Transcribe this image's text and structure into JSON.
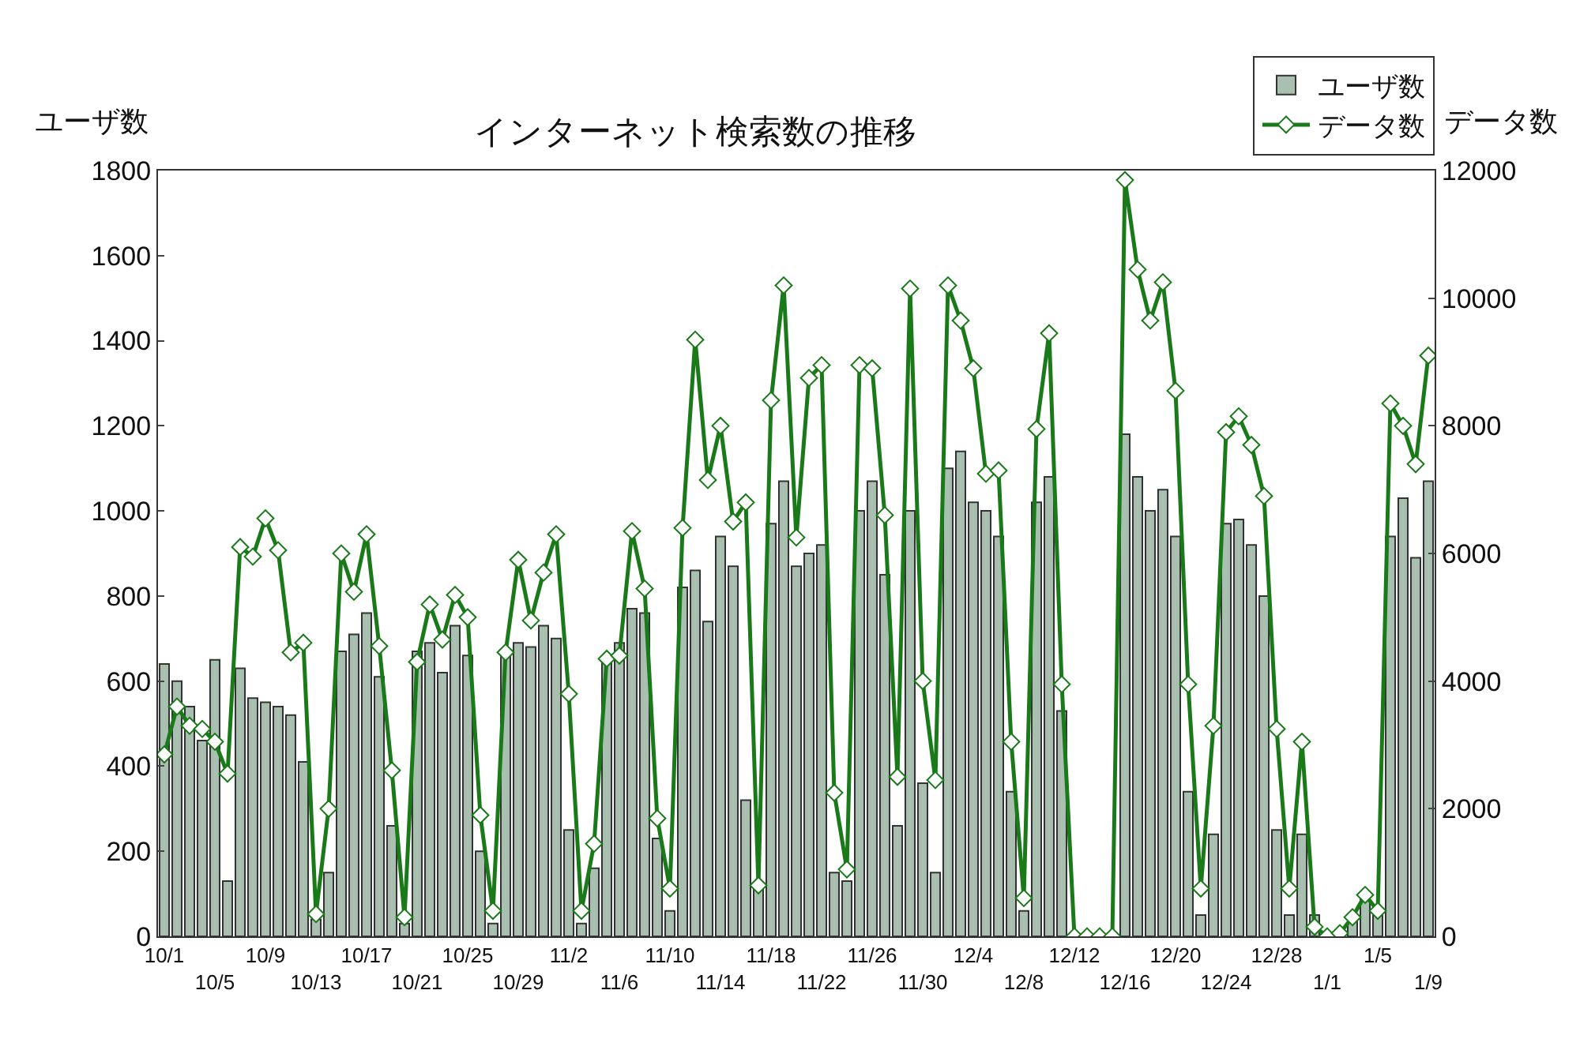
{
  "chart_data": {
    "type": "bar",
    "title": "インターネット検索数の推移",
    "ylabel": "ユーザ数",
    "y2label": "データ数",
    "categories": [
      "10/1",
      null,
      null,
      null,
      "10/5",
      null,
      null,
      null,
      "10/9",
      null,
      null,
      null,
      "10/13",
      null,
      null,
      null,
      "10/17",
      null,
      null,
      null,
      "10/21",
      null,
      null,
      null,
      "10/25",
      null,
      null,
      null,
      "10/29",
      null,
      null,
      null,
      "11/2",
      null,
      null,
      null,
      "11/6",
      null,
      null,
      null,
      "11/10",
      null,
      null,
      null,
      "11/14",
      null,
      null,
      null,
      "11/18",
      null,
      null,
      null,
      "11/22",
      null,
      null,
      null,
      "11/26",
      null,
      null,
      null,
      "11/30",
      null,
      null,
      null,
      "12/4",
      null,
      null,
      null,
      "12/8",
      null,
      null,
      null,
      "12/12",
      null,
      null,
      null,
      "12/16",
      null,
      null,
      null,
      "12/20",
      null,
      null,
      null,
      "12/24",
      null,
      null,
      null,
      "12/28",
      null,
      null,
      null,
      "1/1",
      null,
      null,
      null,
      "1/5",
      null,
      null,
      null,
      "1/9"
    ],
    "series": [
      {
        "name": "ユーザ数",
        "color": "#a9bfb0",
        "values": [
          640,
          600,
          540,
          460,
          650,
          130,
          630,
          560,
          550,
          540,
          520,
          410,
          40,
          150,
          670,
          710,
          760,
          610,
          260,
          30,
          670,
          690,
          620,
          730,
          660,
          200,
          30,
          660,
          690,
          680,
          730,
          700,
          250,
          30,
          160,
          650,
          690,
          770,
          760,
          230,
          60,
          820,
          860,
          740,
          940,
          870,
          320,
          110,
          970,
          1070,
          870,
          900,
          920,
          150,
          130,
          1000,
          1070,
          850,
          260,
          1000,
          360,
          150,
          1100,
          1140,
          1020,
          1000,
          940,
          340,
          60,
          1020,
          1080,
          530,
          0,
          0,
          0,
          0,
          1180,
          1080,
          1000,
          1050,
          940,
          340,
          50,
          240,
          970,
          980,
          920,
          800,
          250,
          50,
          240,
          50,
          0,
          0,
          50,
          90,
          50,
          940,
          1030,
          890,
          1070
        ]
      },
      {
        "name": "データ数",
        "type": "line",
        "axis": "y2",
        "color": "#1a7a1a",
        "values": [
          2850,
          3600,
          3300,
          3250,
          3050,
          2550,
          6100,
          5950,
          6550,
          6050,
          4450,
          4600,
          350,
          2000,
          6000,
          5400,
          6300,
          4550,
          2600,
          300,
          4300,
          5200,
          4650,
          5350,
          5000,
          1900,
          400,
          4450,
          5900,
          4950,
          5700,
          6300,
          3800,
          400,
          1450,
          4350,
          4400,
          6350,
          5450,
          1850,
          750,
          6400,
          9350,
          7150,
          8000,
          6500,
          6800,
          800,
          8400,
          10200,
          6250,
          8750,
          8950,
          2250,
          1050,
          8950,
          8900,
          6600,
          2500,
          10150,
          4000,
          2450,
          10200,
          9650,
          8900,
          7250,
          7300,
          3050,
          600,
          7950,
          9450,
          3950,
          0,
          0,
          0,
          0,
          11850,
          10450,
          9650,
          10250,
          8550,
          3950,
          750,
          3300,
          7900,
          8150,
          7700,
          6900,
          3250,
          750,
          3050,
          150,
          0,
          50,
          300,
          650,
          400,
          8350,
          8000,
          7400,
          9100
        ]
      }
    ],
    "ylim": [
      0,
      1800
    ],
    "yticks": [
      0,
      200,
      400,
      600,
      800,
      1000,
      1200,
      1400,
      1600,
      1800
    ],
    "y2lim": [
      0,
      12000
    ],
    "y2ticks": [
      0,
      2000,
      4000,
      6000,
      8000,
      10000,
      12000
    ],
    "grid": false,
    "legend": "top right",
    "marker": "diamond",
    "line_style": "solid"
  }
}
